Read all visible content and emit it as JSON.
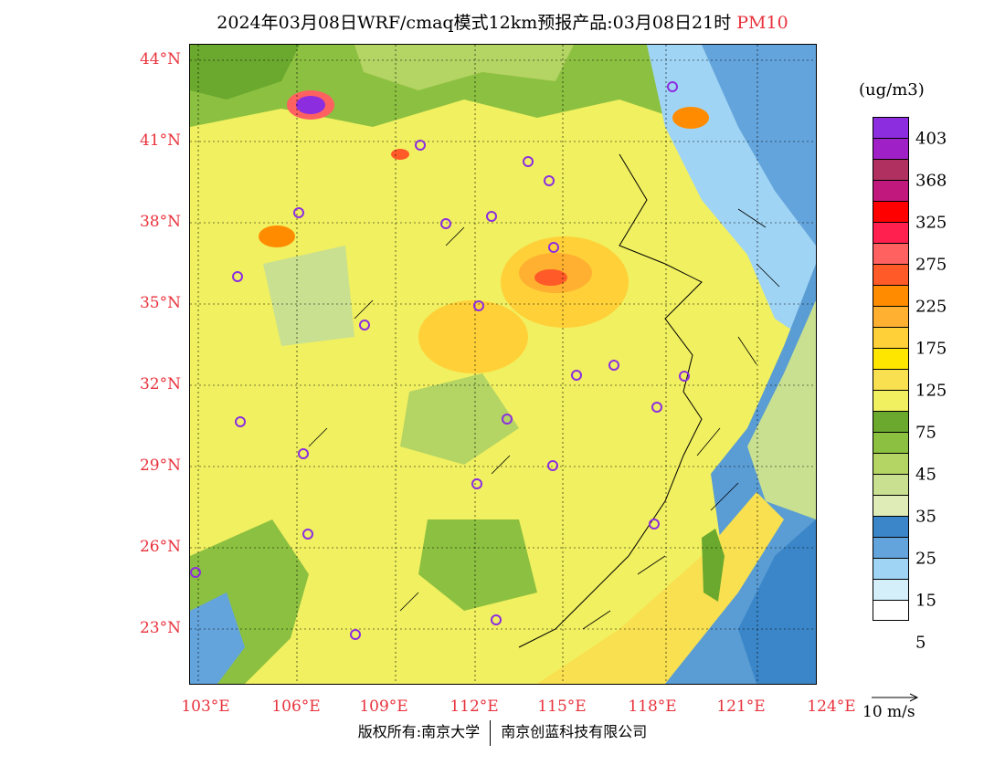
{
  "title": {
    "main": "2024年03月08日WRF/cmaq模式12km预报产品:03月08日21时",
    "pollutant": "PM10"
  },
  "map": {
    "latitudes": [
      "44°N",
      "41°N",
      "38°N",
      "35°N",
      "32°N",
      "29°N",
      "26°N",
      "23°N"
    ],
    "longitudes": [
      "103°E",
      "106°E",
      "109°E",
      "112°E",
      "115°E",
      "118°E",
      "121°E",
      "124°E"
    ],
    "station_marker": "circle-icon"
  },
  "legend": {
    "unit": "(ug/m3)",
    "levels": [
      "403",
      "368",
      "325",
      "275",
      "225",
      "175",
      "125",
      "75",
      "45",
      "35",
      "25",
      "15",
      "5"
    ],
    "colors": [
      "#8c2ee0",
      "#a020c8",
      "#b03060",
      "#c0187c",
      "#ff0000",
      "#ff2050",
      "#ff6060",
      "#ff5a28",
      "#ff8c00",
      "#ffb030",
      "#ffd038",
      "#ffe600",
      "#f8e050",
      "#f0f060",
      "#6aa82e",
      "#8cc040",
      "#b4d464",
      "#c8e090",
      "#e0ecb8",
      "#3a86c8",
      "#64a4dc",
      "#a0d4f4",
      "#d4eefa",
      "#ffffff"
    ]
  },
  "wind_key": {
    "label": "10 m/s"
  },
  "footer": {
    "copyright": "版权所有:南京大学",
    "company": "南京创蓝科技有限公司"
  },
  "colors": {
    "label_red": "#e8323c",
    "ocean": "#5a9cd4",
    "land_low": "#f0f060",
    "land_mid": "#6aa82e"
  }
}
